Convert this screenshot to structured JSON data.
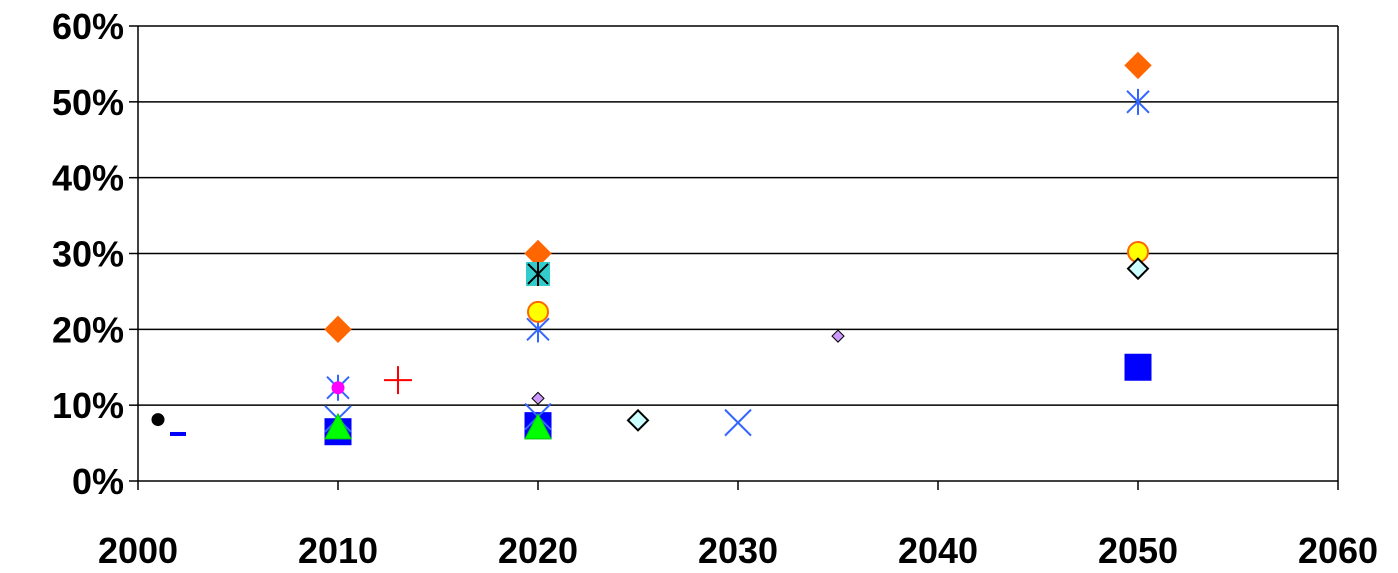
{
  "chart_data": {
    "type": "scatter",
    "title": "",
    "xlabel": "",
    "ylabel": "",
    "xlim": [
      2000,
      2060
    ],
    "ylim": [
      0,
      60
    ],
    "y_unit": "%",
    "x_ticks": [
      "2000",
      "2010",
      "2020",
      "2030",
      "2040",
      "2050",
      "2060"
    ],
    "y_ticks": [
      "0%",
      "10%",
      "20%",
      "30%",
      "40%",
      "50%",
      "60%"
    ],
    "grid": "horizontal",
    "legend": "none",
    "series": [
      {
        "marker": "diamond",
        "color": "#ff6600",
        "stroke": "#ff6600",
        "points": [
          [
            2010,
            20
          ],
          [
            2020,
            30
          ],
          [
            2050,
            54.8
          ]
        ]
      },
      {
        "marker": "asterisk",
        "color": "#3366ff",
        "stroke": "#3366ff",
        "points": [
          [
            2010,
            12.3
          ],
          [
            2020,
            20
          ],
          [
            2050,
            50
          ]
        ]
      },
      {
        "marker": "circle",
        "color": "#ffff00",
        "stroke": "#ff6600",
        "points": [
          [
            2020,
            22.3
          ],
          [
            2050,
            30.2
          ]
        ]
      },
      {
        "marker": "diamond-outline",
        "color": "#ccffff",
        "stroke": "#000000",
        "points": [
          [
            2025,
            8
          ],
          [
            2050,
            28
          ]
        ]
      },
      {
        "marker": "square",
        "color": "#0000ff",
        "stroke": "#0000ff",
        "points": [
          [
            2010,
            6.5
          ],
          [
            2020,
            7.3
          ],
          [
            2050,
            15
          ]
        ]
      },
      {
        "marker": "x",
        "color": "#3366ff",
        "stroke": "#3366ff",
        "points": [
          [
            2010,
            8.2
          ],
          [
            2020,
            8.5
          ],
          [
            2030,
            7.7
          ]
        ]
      },
      {
        "marker": "triangle",
        "color": "#00ff00",
        "stroke": "#00cc00",
        "points": [
          [
            2010,
            7
          ],
          [
            2020,
            7
          ]
        ]
      },
      {
        "marker": "square-asterisk",
        "color": "#33cccc",
        "stroke": "#000000",
        "points": [
          [
            2020,
            27.3
          ]
        ]
      },
      {
        "marker": "small-diamond",
        "color": "#cc99ff",
        "stroke": "#000000",
        "points": [
          [
            2020,
            10.9
          ],
          [
            2035,
            19.1
          ]
        ]
      },
      {
        "marker": "dot",
        "color": "#ff00ff",
        "stroke": "#ff00ff",
        "points": [
          [
            2010,
            12.3
          ]
        ]
      },
      {
        "marker": "plus",
        "color": "#ff0000",
        "stroke": "#ff0000",
        "points": [
          [
            2013,
            13.3
          ]
        ]
      },
      {
        "marker": "dot",
        "color": "#000000",
        "stroke": "#000000",
        "points": [
          [
            2001,
            8.1
          ]
        ]
      },
      {
        "marker": "dash",
        "color": "#0000ff",
        "stroke": "#0000ff",
        "points": [
          [
            2002,
            6.2
          ]
        ]
      }
    ]
  }
}
